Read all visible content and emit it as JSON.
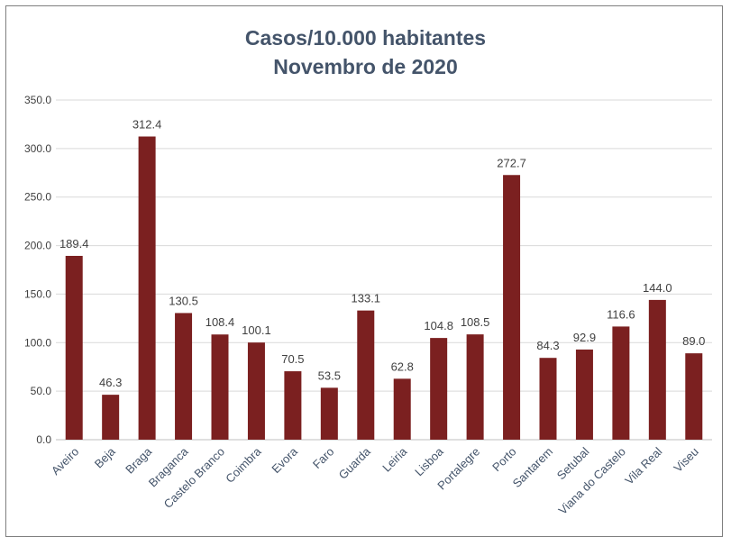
{
  "chart_data": {
    "type": "bar",
    "title_line1": "Casos/10.000 habitantes",
    "title_line2": "Novembro de 2020",
    "categories": [
      "Aveiro",
      "Beja",
      "Braga",
      "Braganca",
      "Castelo Branco",
      "Coimbra",
      "Evora",
      "Faro",
      "Guarda",
      "Leiria",
      "Lisboa",
      "Portalegre",
      "Porto",
      "Santarem",
      "Setubal",
      "Viana do Castelo",
      "Vila Real",
      "Viseu"
    ],
    "values": [
      189.4,
      46.3,
      312.4,
      130.5,
      108.4,
      100.1,
      70.5,
      53.5,
      133.1,
      62.8,
      104.8,
      108.5,
      272.7,
      84.3,
      92.9,
      116.6,
      144.0,
      89.0
    ],
    "value_labels": [
      "189.4",
      "46.3",
      "312.4",
      "130.5",
      "108.4",
      "100.1",
      "70.5",
      "53.5",
      "133.1",
      "62.8",
      "104.8",
      "108.5",
      "272.7",
      "84.3",
      "92.9",
      "116.6",
      "144.0",
      "89.0"
    ],
    "ylim": [
      0,
      350
    ],
    "yticks": [
      "0.0",
      "50.0",
      "100.0",
      "150.0",
      "200.0",
      "250.0",
      "300.0",
      "350.0"
    ],
    "xlabel": "",
    "ylabel": "",
    "grid": true,
    "legend": "none",
    "bar_color": "#7b2020",
    "grid_color": "#d9d9d9",
    "title_color": "#44546a"
  }
}
